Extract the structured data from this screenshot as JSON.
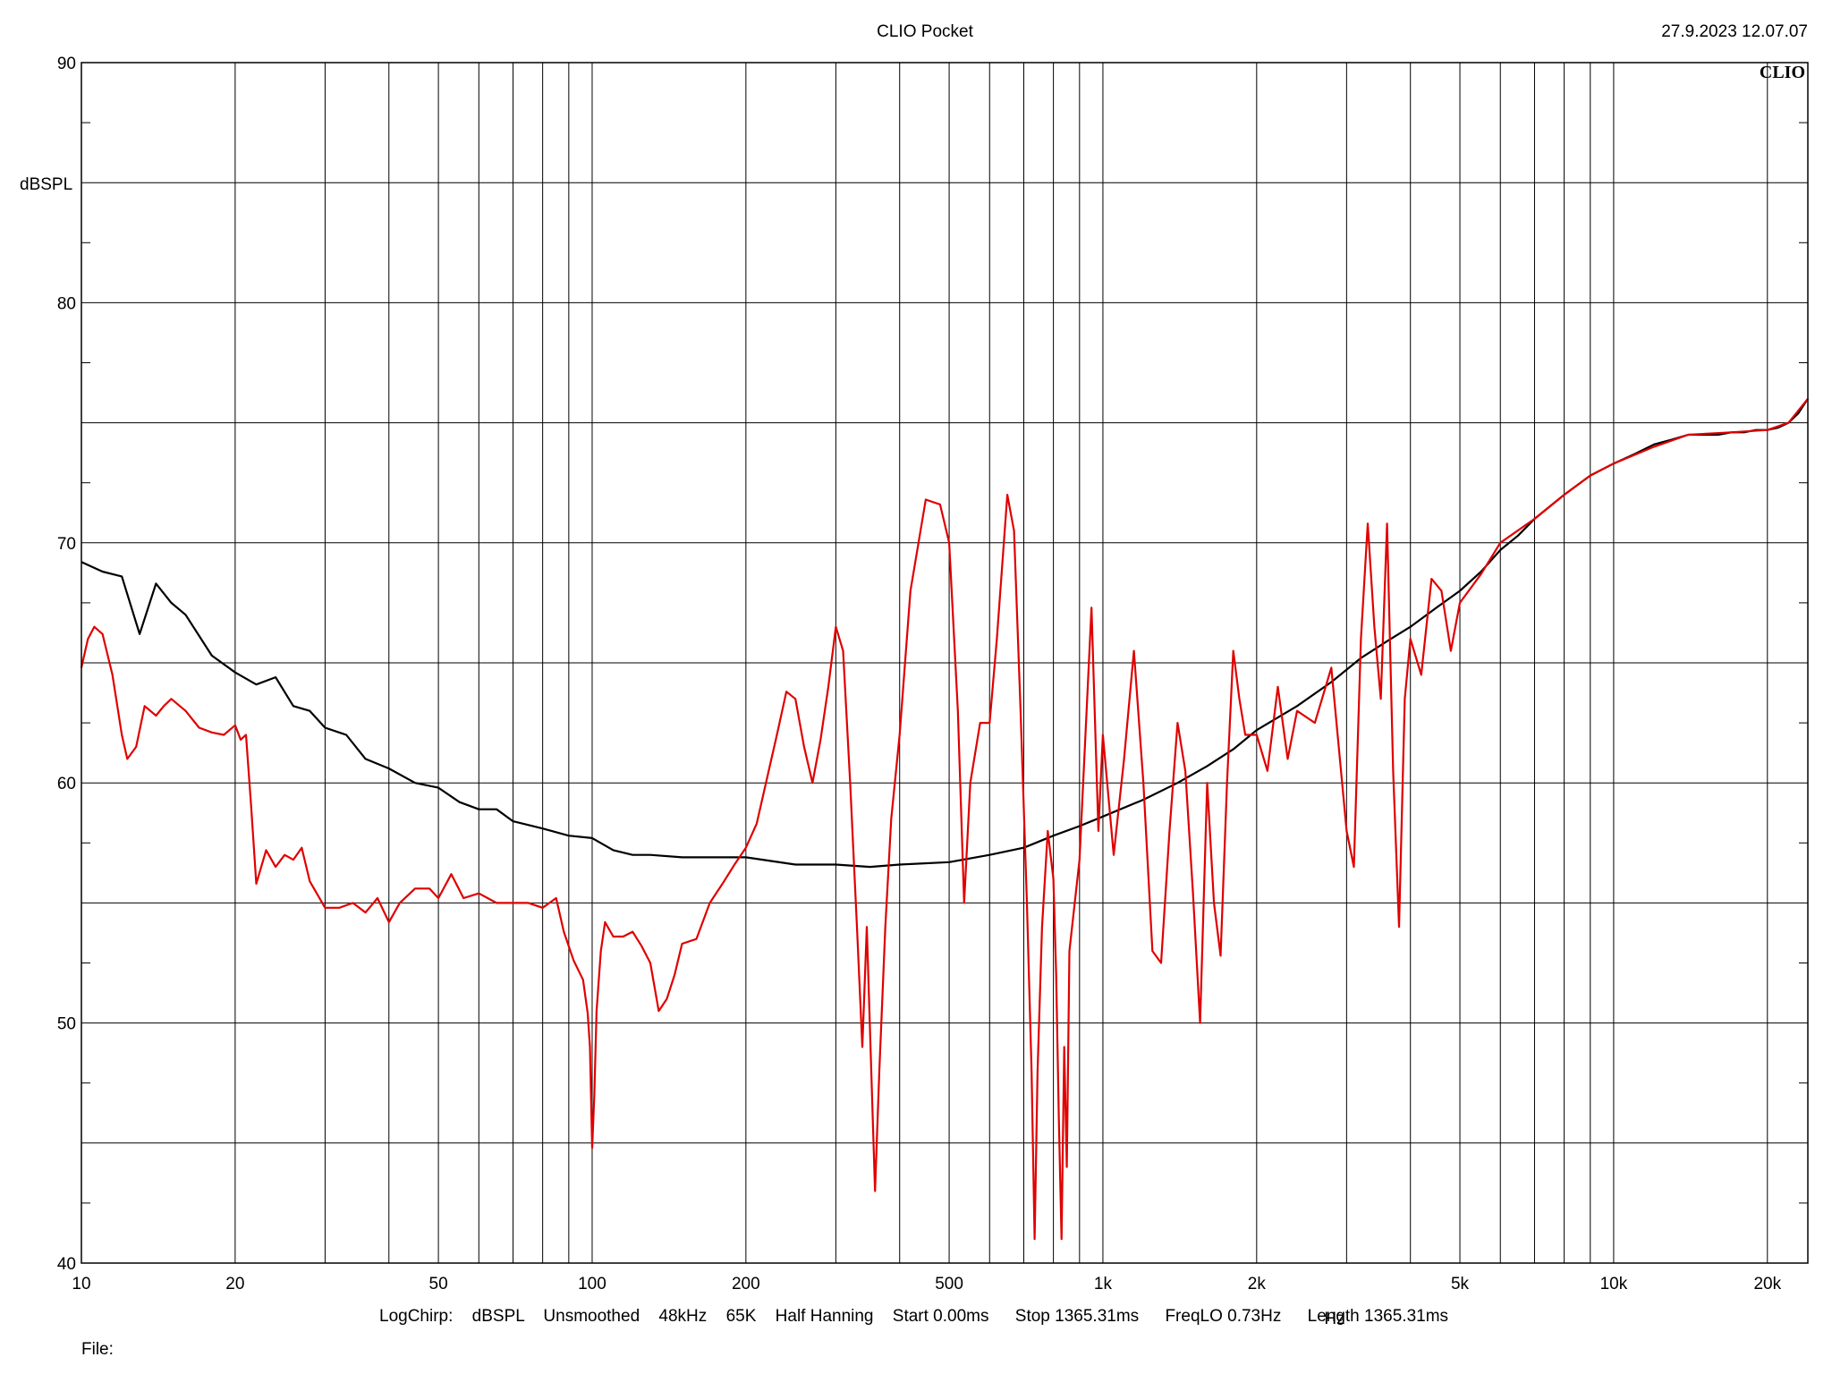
{
  "header": {
    "title": "CLIO Pocket",
    "timestamp": "27.9.2023 12.07.07",
    "logo_text": "CLIO"
  },
  "footer": {
    "settings": [
      "LogChirp:",
      "dBSPL",
      "Unsmoothed",
      "48kHz",
      "65K",
      "Half Hanning",
      "Start 0.00ms",
      "Stop 1365.31ms",
      "FreqLO 0.73Hz",
      "Length 1365.31ms"
    ],
    "file_label": "File:"
  },
  "chart_data": {
    "type": "line",
    "ylabel": "dBSPL",
    "xunit": "Hz",
    "xscale": "log",
    "xlim": [
      10,
      24000
    ],
    "ylim": [
      40,
      90
    ],
    "grid": true,
    "x_ticks": [
      {
        "value": 10,
        "label": "10"
      },
      {
        "value": 20,
        "label": "20"
      },
      {
        "value": 50,
        "label": "50"
      },
      {
        "value": 100,
        "label": "100"
      },
      {
        "value": 200,
        "label": "200"
      },
      {
        "value": 500,
        "label": "500"
      },
      {
        "value": 1000,
        "label": "1k"
      },
      {
        "value": 2000,
        "label": "2k"
      },
      {
        "value": 5000,
        "label": "5k"
      },
      {
        "value": 10000,
        "label": "10k"
      },
      {
        "value": 20000,
        "label": "20k"
      }
    ],
    "y_ticks": [
      {
        "value": 90,
        "label": "90"
      },
      {
        "value": 80,
        "label": "80"
      },
      {
        "value": 70,
        "label": "70"
      },
      {
        "value": 60,
        "label": "60"
      },
      {
        "value": 50,
        "label": "50"
      },
      {
        "value": 40,
        "label": "40"
      }
    ],
    "series": [
      {
        "color": "#000000",
        "points": [
          [
            10,
            69.2
          ],
          [
            11,
            68.8
          ],
          [
            12,
            68.6
          ],
          [
            13,
            66.2
          ],
          [
            14,
            68.3
          ],
          [
            15,
            67.5
          ],
          [
            16,
            67.0
          ],
          [
            18,
            65.3
          ],
          [
            20,
            64.6
          ],
          [
            22,
            64.1
          ],
          [
            24,
            64.4
          ],
          [
            26,
            63.2
          ],
          [
            28,
            63.0
          ],
          [
            30,
            62.3
          ],
          [
            33,
            62.0
          ],
          [
            36,
            61.0
          ],
          [
            40,
            60.6
          ],
          [
            45,
            60.0
          ],
          [
            50,
            59.8
          ],
          [
            55,
            59.2
          ],
          [
            60,
            58.9
          ],
          [
            65,
            58.9
          ],
          [
            70,
            58.4
          ],
          [
            80,
            58.1
          ],
          [
            90,
            57.8
          ],
          [
            100,
            57.7
          ],
          [
            110,
            57.2
          ],
          [
            120,
            57.0
          ],
          [
            130,
            57.0
          ],
          [
            150,
            56.9
          ],
          [
            170,
            56.9
          ],
          [
            200,
            56.9
          ],
          [
            250,
            56.6
          ],
          [
            300,
            56.6
          ],
          [
            350,
            56.5
          ],
          [
            400,
            56.6
          ],
          [
            500,
            56.7
          ],
          [
            600,
            57.0
          ],
          [
            700,
            57.3
          ],
          [
            800,
            57.8
          ],
          [
            900,
            58.2
          ],
          [
            1000,
            58.6
          ],
          [
            1200,
            59.3
          ],
          [
            1400,
            60.0
          ],
          [
            1600,
            60.7
          ],
          [
            1800,
            61.4
          ],
          [
            2000,
            62.2
          ],
          [
            2400,
            63.2
          ],
          [
            2800,
            64.2
          ],
          [
            3200,
            65.2
          ],
          [
            3600,
            65.9
          ],
          [
            4000,
            66.5
          ],
          [
            4500,
            67.3
          ],
          [
            5000,
            68.0
          ],
          [
            5500,
            68.8
          ],
          [
            6000,
            69.7
          ],
          [
            6500,
            70.3
          ],
          [
            7000,
            71.0
          ],
          [
            8000,
            72.0
          ],
          [
            9000,
            72.8
          ],
          [
            10000,
            73.3
          ],
          [
            11000,
            73.7
          ],
          [
            12000,
            74.1
          ],
          [
            13000,
            74.3
          ],
          [
            14000,
            74.5
          ],
          [
            15000,
            74.5
          ],
          [
            16000,
            74.5
          ],
          [
            17000,
            74.6
          ],
          [
            18000,
            74.6
          ],
          [
            19000,
            74.7
          ],
          [
            20000,
            74.7
          ],
          [
            21000,
            74.8
          ],
          [
            22000,
            75.0
          ],
          [
            23000,
            75.4
          ],
          [
            24000,
            76.0
          ]
        ]
      },
      {
        "color": "#e00000",
        "points": [
          [
            10,
            64.8
          ],
          [
            10.3,
            66.0
          ],
          [
            10.6,
            66.5
          ],
          [
            11,
            66.2
          ],
          [
            11.5,
            64.5
          ],
          [
            12,
            62.0
          ],
          [
            12.3,
            61.0
          ],
          [
            12.8,
            61.5
          ],
          [
            13.3,
            63.2
          ],
          [
            14,
            62.8
          ],
          [
            14.5,
            63.2
          ],
          [
            15,
            63.5
          ],
          [
            16,
            63.0
          ],
          [
            17,
            62.3
          ],
          [
            18,
            62.1
          ],
          [
            19,
            62.0
          ],
          [
            20,
            62.4
          ],
          [
            20.5,
            61.8
          ],
          [
            21,
            62.0
          ],
          [
            21.5,
            59.0
          ],
          [
            22,
            55.8
          ],
          [
            23,
            57.2
          ],
          [
            24,
            56.5
          ],
          [
            25,
            57.0
          ],
          [
            26,
            56.8
          ],
          [
            27,
            57.3
          ],
          [
            28,
            55.9
          ],
          [
            30,
            54.8
          ],
          [
            32,
            54.8
          ],
          [
            34,
            55.0
          ],
          [
            36,
            54.6
          ],
          [
            38,
            55.2
          ],
          [
            40,
            54.2
          ],
          [
            42,
            55.0
          ],
          [
            45,
            55.6
          ],
          [
            48,
            55.6
          ],
          [
            50,
            55.2
          ],
          [
            53,
            56.2
          ],
          [
            56,
            55.2
          ],
          [
            60,
            55.4
          ],
          [
            65,
            55.0
          ],
          [
            70,
            55.0
          ],
          [
            75,
            55.0
          ],
          [
            80,
            54.8
          ],
          [
            85,
            55.2
          ],
          [
            88,
            53.8
          ],
          [
            92,
            52.6
          ],
          [
            96,
            51.8
          ],
          [
            98,
            50.4
          ],
          [
            99,
            49.0
          ],
          [
            100,
            44.8
          ],
          [
            101,
            47.0
          ],
          [
            102,
            50.5
          ],
          [
            104,
            53.0
          ],
          [
            106,
            54.2
          ],
          [
            110,
            53.6
          ],
          [
            115,
            53.6
          ],
          [
            120,
            53.8
          ],
          [
            125,
            53.2
          ],
          [
            130,
            52.5
          ],
          [
            135,
            50.5
          ],
          [
            140,
            51.0
          ],
          [
            145,
            52.0
          ],
          [
            150,
            53.3
          ],
          [
            160,
            53.5
          ],
          [
            170,
            55.0
          ],
          [
            180,
            55.8
          ],
          [
            190,
            56.6
          ],
          [
            200,
            57.3
          ],
          [
            210,
            58.3
          ],
          [
            220,
            60.2
          ],
          [
            230,
            62.0
          ],
          [
            240,
            63.8
          ],
          [
            250,
            63.5
          ],
          [
            260,
            61.5
          ],
          [
            270,
            60.0
          ],
          [
            280,
            61.8
          ],
          [
            290,
            64.0
          ],
          [
            300,
            66.5
          ],
          [
            310,
            65.5
          ],
          [
            320,
            60.0
          ],
          [
            330,
            54.0
          ],
          [
            338,
            49.0
          ],
          [
            345,
            54.0
          ],
          [
            352,
            48.0
          ],
          [
            358,
            43.0
          ],
          [
            365,
            48.0
          ],
          [
            375,
            54.0
          ],
          [
            385,
            58.5
          ],
          [
            400,
            62.0
          ],
          [
            420,
            68.0
          ],
          [
            450,
            71.8
          ],
          [
            480,
            71.6
          ],
          [
            500,
            70.0
          ],
          [
            520,
            63.0
          ],
          [
            535,
            55.0
          ],
          [
            550,
            60.0
          ],
          [
            575,
            62.5
          ],
          [
            600,
            62.5
          ],
          [
            620,
            66.0
          ],
          [
            650,
            72.0
          ],
          [
            670,
            70.5
          ],
          [
            690,
            63.0
          ],
          [
            710,
            55.0
          ],
          [
            725,
            48.0
          ],
          [
            735,
            41.0
          ],
          [
            745,
            48.0
          ],
          [
            760,
            54.0
          ],
          [
            780,
            58.0
          ],
          [
            800,
            56.0
          ],
          [
            810,
            52.0
          ],
          [
            820,
            46.0
          ],
          [
            830,
            41.0
          ],
          [
            840,
            49.0
          ],
          [
            850,
            44.0
          ],
          [
            860,
            53.0
          ],
          [
            900,
            56.8
          ],
          [
            950,
            67.3
          ],
          [
            980,
            58.0
          ],
          [
            1000,
            62.0
          ],
          [
            1050,
            57.0
          ],
          [
            1100,
            61.0
          ],
          [
            1150,
            65.5
          ],
          [
            1200,
            60.0
          ],
          [
            1250,
            53.0
          ],
          [
            1300,
            52.5
          ],
          [
            1350,
            58.0
          ],
          [
            1400,
            62.5
          ],
          [
            1450,
            60.5
          ],
          [
            1500,
            55.5
          ],
          [
            1550,
            50.0
          ],
          [
            1600,
            60.0
          ],
          [
            1650,
            55.0
          ],
          [
            1700,
            52.8
          ],
          [
            1750,
            60.0
          ],
          [
            1800,
            65.5
          ],
          [
            1850,
            63.5
          ],
          [
            1900,
            62.0
          ],
          [
            2000,
            62.0
          ],
          [
            2100,
            60.5
          ],
          [
            2200,
            64.0
          ],
          [
            2300,
            61.0
          ],
          [
            2400,
            63.0
          ],
          [
            2600,
            62.5
          ],
          [
            2800,
            64.8
          ],
          [
            3000,
            58.0
          ],
          [
            3100,
            56.5
          ],
          [
            3200,
            66.0
          ],
          [
            3300,
            70.8
          ],
          [
            3400,
            66.5
          ],
          [
            3500,
            63.5
          ],
          [
            3600,
            70.8
          ],
          [
            3700,
            60.5
          ],
          [
            3800,
            54.0
          ],
          [
            3900,
            63.5
          ],
          [
            4000,
            66.0
          ],
          [
            4200,
            64.5
          ],
          [
            4400,
            68.5
          ],
          [
            4600,
            68.0
          ],
          [
            4800,
            65.5
          ],
          [
            5000,
            67.5
          ],
          [
            5500,
            68.7
          ],
          [
            6000,
            70.0
          ],
          [
            7000,
            71.0
          ],
          [
            8000,
            72.0
          ],
          [
            9000,
            72.8
          ],
          [
            10000,
            73.3
          ],
          [
            12000,
            74.0
          ],
          [
            14000,
            74.5
          ],
          [
            17000,
            74.6
          ],
          [
            20000,
            74.7
          ],
          [
            22000,
            75.0
          ],
          [
            24000,
            76.0
          ]
        ]
      }
    ]
  }
}
